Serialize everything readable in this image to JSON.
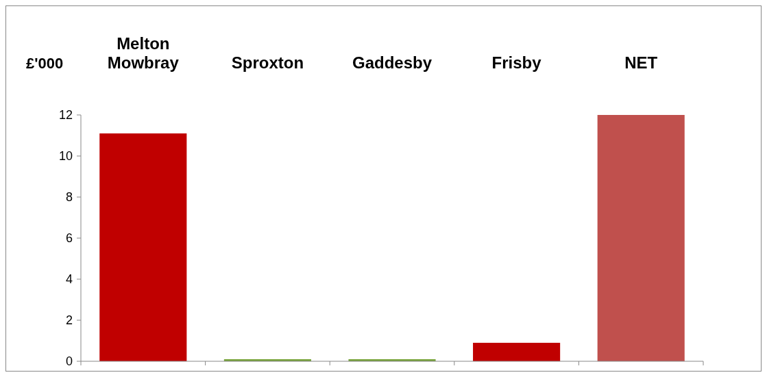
{
  "chart_data": {
    "type": "bar",
    "ylabel": "£'000",
    "categories": [
      "Melton Mowbray",
      "Sproxton",
      "Gaddesby",
      "Frisby",
      "NET"
    ],
    "values": [
      11.1,
      0.1,
      0.1,
      0.9,
      12
    ],
    "colors": [
      "#c00000",
      "#77a33a",
      "#77a33a",
      "#c00000",
      "#c0504d"
    ],
    "ylim": [
      0,
      12
    ],
    "yticks": [
      0,
      2,
      4,
      6,
      8,
      10,
      12
    ],
    "grid": false
  }
}
